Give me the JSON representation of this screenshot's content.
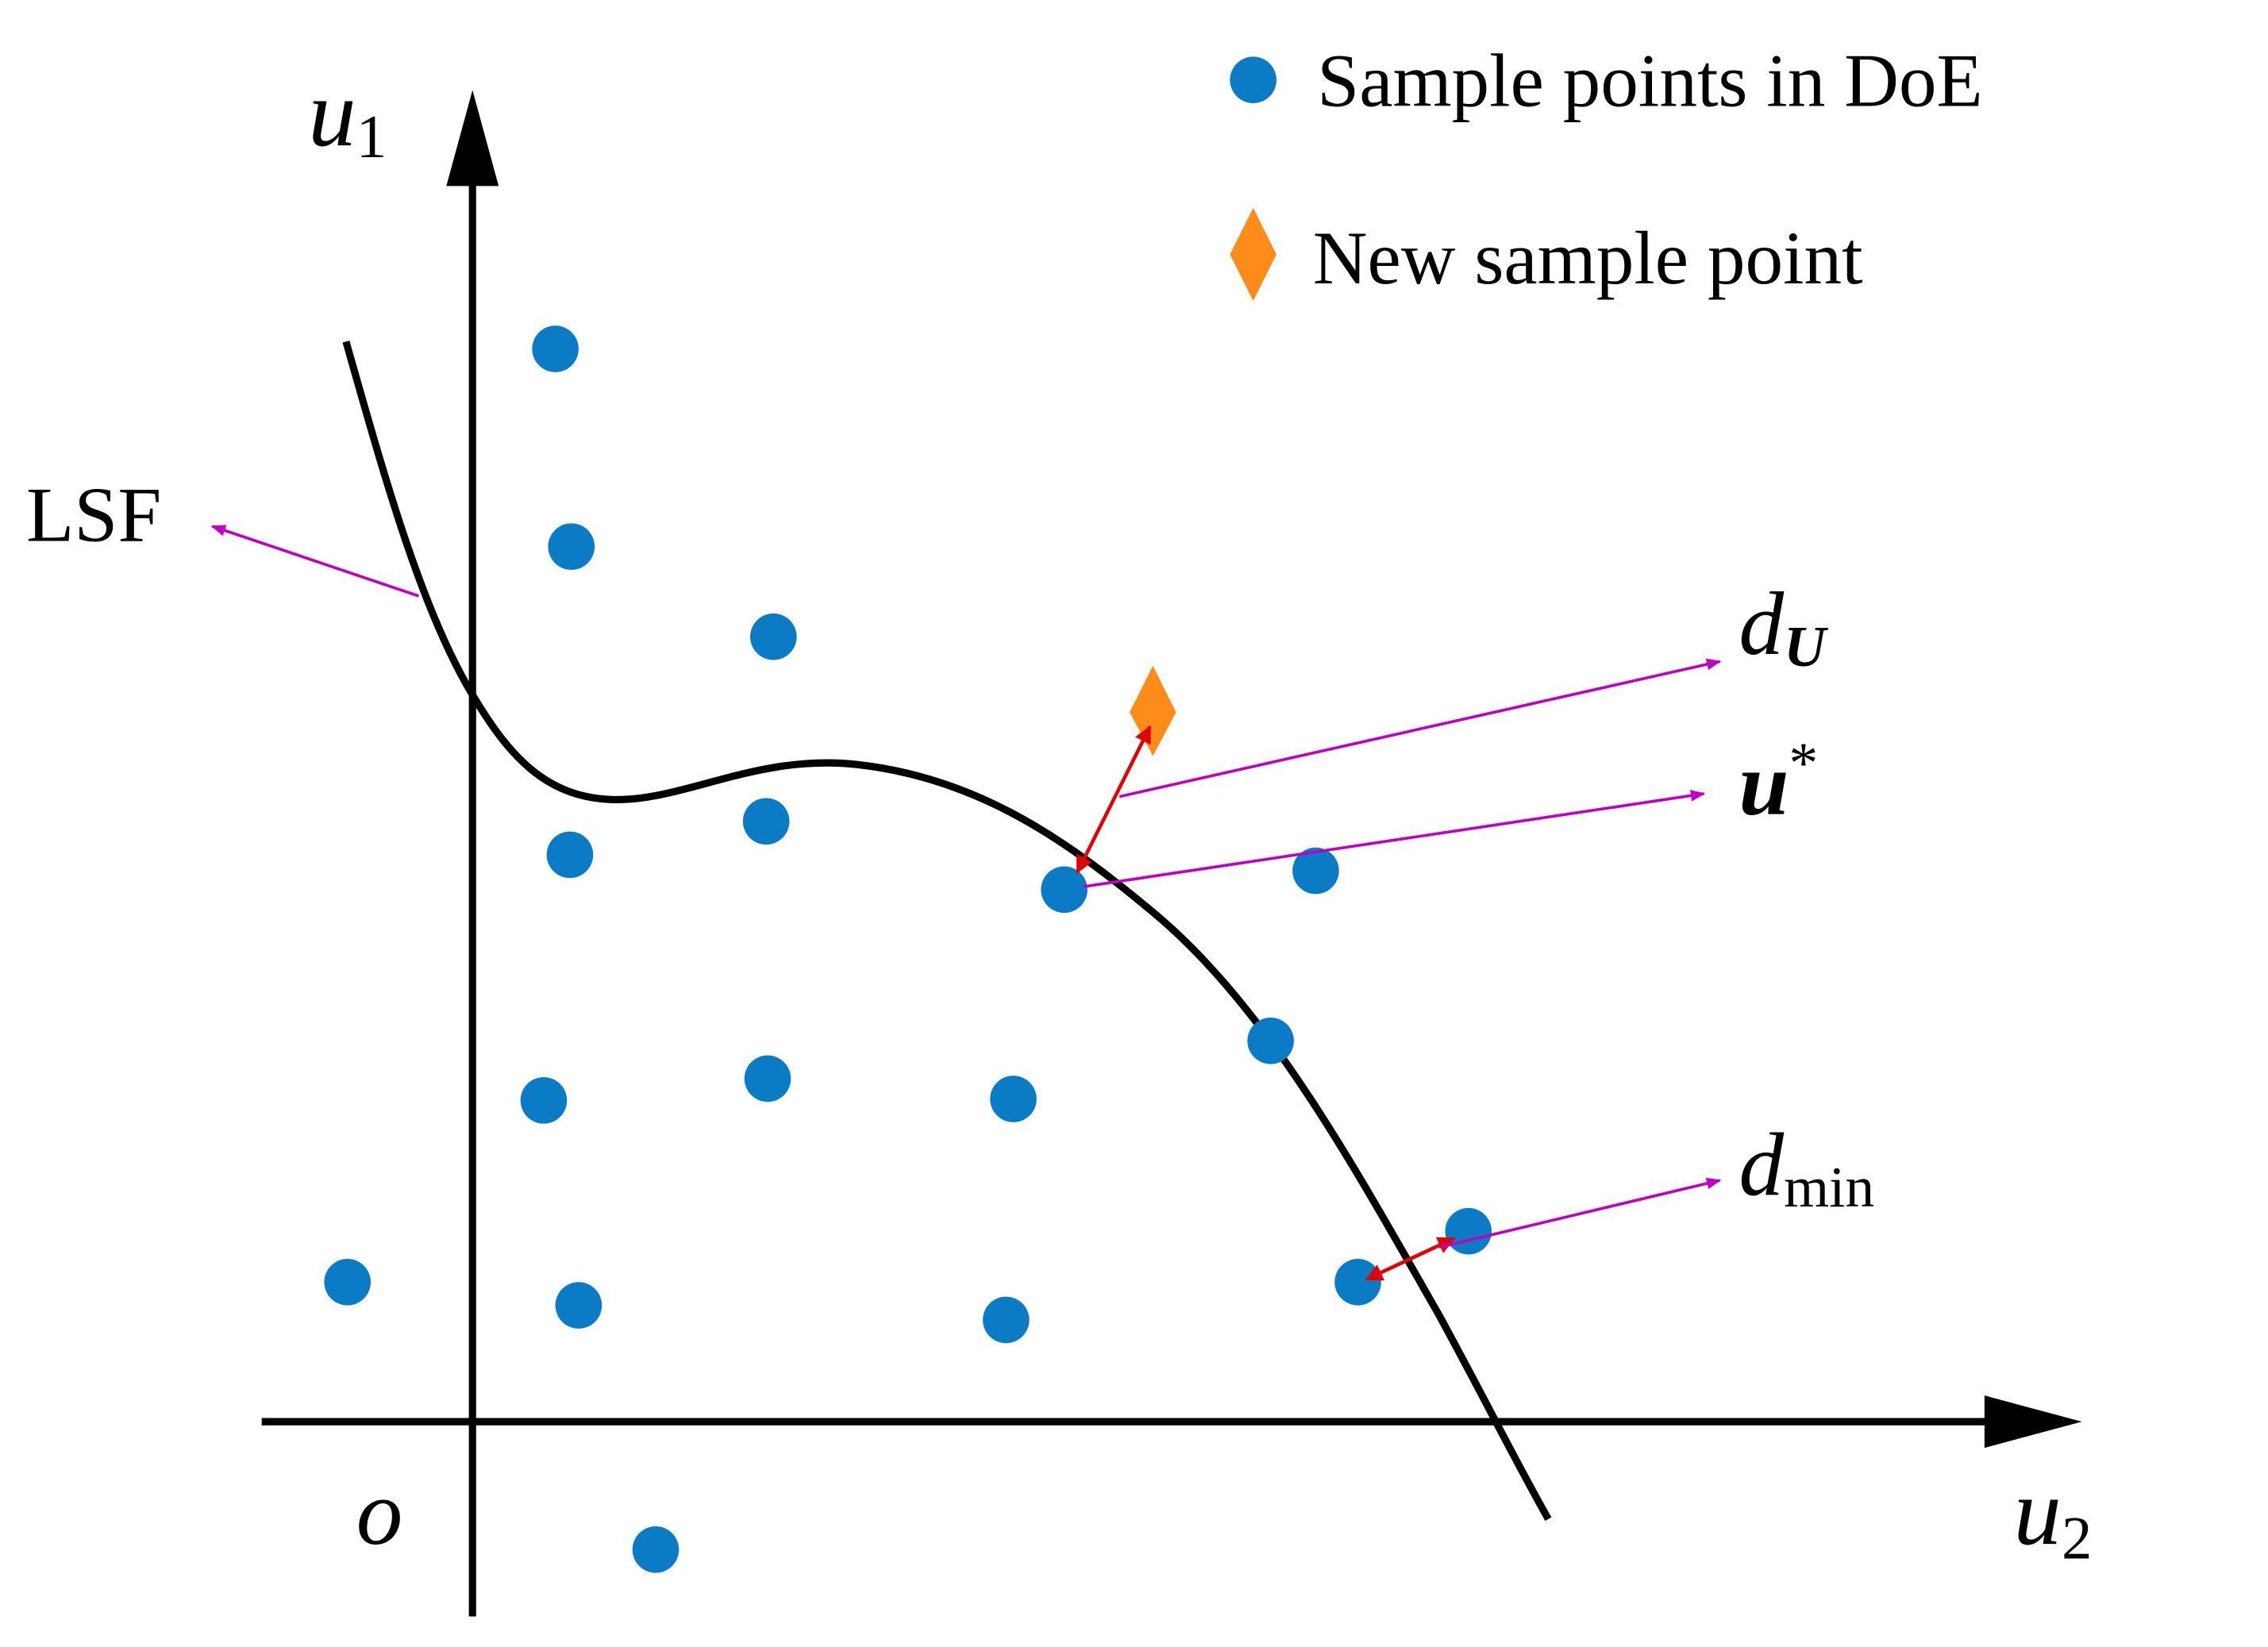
{
  "legend": {
    "items": [
      {
        "label": "Sample points in DoE"
      },
      {
        "label": "New sample point"
      }
    ]
  },
  "axes": {
    "y_label": {
      "symbol": "u",
      "subscript": "1"
    },
    "x_label": {
      "symbol": "u",
      "subscript": "2"
    },
    "origin": "o"
  },
  "annotations": {
    "lsf": "LSF",
    "d_u": {
      "symbol": "d",
      "subscript": "U"
    },
    "u_star": {
      "symbol": "u",
      "superscript": "*"
    },
    "d_min": {
      "symbol": "d",
      "subscript": "min"
    }
  }
}
